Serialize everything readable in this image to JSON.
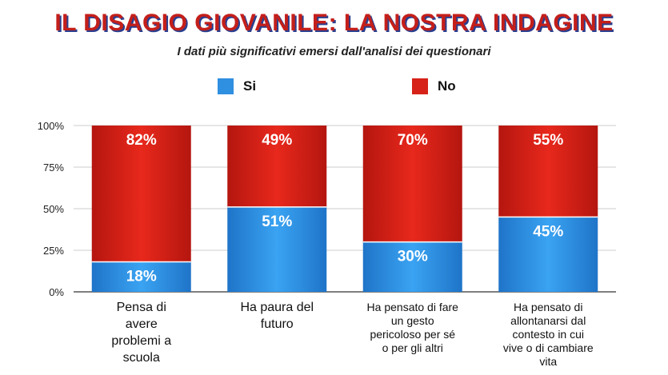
{
  "title": "IL DISAGIO GIOVANILE: LA NOSTRA INDAGINE",
  "subtitle": "I dati più significativi emersi dall'analisi dei questionari",
  "colors": {
    "si": "#2f8fe0",
    "no": "#d62218",
    "grid": "#cccccc",
    "axis": "#555555"
  },
  "legend": {
    "si": "Si",
    "no": "No"
  },
  "chart_data": {
    "type": "bar",
    "stacked": true,
    "categories": [
      "Pensa di avere problemi a scuola",
      "Ha paura del futuro",
      "Ha pensato di fare un gesto pericoloso per sé o per gli altri",
      "Ha pensato di allontanarsi dal contesto in cui vive o di cambiare vita"
    ],
    "series": [
      {
        "name": "Si",
        "values": [
          18,
          51,
          30,
          45
        ],
        "labels": [
          "18%",
          "51%",
          "30%",
          "45%"
        ]
      },
      {
        "name": "No",
        "values": [
          82,
          49,
          70,
          55
        ],
        "labels": [
          "82%",
          "49%",
          "70%",
          "55%"
        ]
      }
    ],
    "ylim": [
      0,
      100
    ],
    "yticks": [
      "0%",
      "25%",
      "50%",
      "75%",
      "100%"
    ],
    "legend_position": "top",
    "grid": true
  }
}
